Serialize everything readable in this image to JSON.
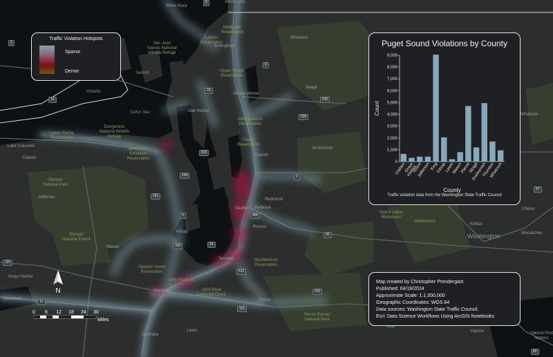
{
  "colors": {
    "land": "#2b2e2d",
    "water": "#0e1114",
    "park": "#3a4330",
    "road": "#5c6367",
    "hotspot_sparse": "#8fb2c4",
    "hotspot_dense": "#b01040",
    "bar": "#8aa8bc"
  },
  "legend": {
    "title": "Traffic Violation Hotspots",
    "sparse_label": "Sparse",
    "dense_label": "Dense"
  },
  "map_labels": {
    "white_rock": "White Rock",
    "abbotsford": "Abbotsford",
    "nooksack": "Nooksack\nReservation",
    "whatcom_top": "Whatcom",
    "whatcom_right": "Whatcom",
    "san_juan": "San Juan\nIslands National\nWildlife Refuge",
    "lummi": "Lummi\nReservation",
    "bellingham": "Bellingham",
    "victoria": "Victoria",
    "upper_skagit": "Upper Skagit\nReservation",
    "mount_vernon": "Mount Vernon",
    "skagit": "Skagit",
    "salish_sea": "Salish Sea",
    "oak_harbor": "Oak Harbor",
    "stillaguamish": "Stillaguamish\nReservation",
    "lower_elwha": "Lower Elwha\nReservation",
    "dungeness": "Dungeness\nNational Wildlife\nRefuge",
    "tulalip": "Tulalip\nReservation",
    "jamestown": "Jamestown\nS'Klallam\nReservation",
    "snohomish": "Snohomish",
    "everett": "Everett",
    "lake_crescent": "Lake Crescent",
    "clallam": "Clallam",
    "olympic_np": "Olympic\nNational Park",
    "jefferson": "Jefferson",
    "redmond": "Redmond",
    "seattle": "Seattle",
    "bellevue": "Bellevue",
    "renton": "Renton",
    "olympic_nf": "Olympic\nNational Forest",
    "alpine_lakes": "Alpine Lakes\nWilderness",
    "kittitas": "Kittitas",
    "washington": "Washington",
    "wenatchee": "Wenatchee",
    "chelan": "Chelan",
    "mason": "Mason",
    "kitsap": "Kitsap",
    "tacoma": "Tacoma",
    "muckleshoot": "Muckleshoot\nReservation",
    "squaxin": "Squaxin Island\nReservation",
    "grays_harbor": "Grays Harbor",
    "billy_frank": "Billy Frank Jr.",
    "olympia": "Olympia",
    "jbl": "Joint Base\nLewis-McChord",
    "pierce": "Pierce",
    "aberdeen": "Aberdeen",
    "mount_rainier": "Mount Rainier\nNational Park",
    "lewis": "Lewis",
    "centralia": "Centralia",
    "yakima": "Yakima",
    "yakima_first": "Yakima First\nNations",
    "samish": "Samish",
    "wilderness": "Wilderness"
  },
  "highway_shields": {
    "s1": "1",
    "s5a": "5",
    "s14": "14",
    "s20": "20",
    "s530": "530",
    "s525": "525",
    "s104": "104",
    "s101a": "101",
    "s2": "2",
    "s405": "405",
    "s90": "90",
    "s3": "3",
    "s16": "16",
    "s512": "512",
    "s302": "302",
    "s101b": "101",
    "s12a": "12",
    "s12b": "12",
    "s97": "97",
    "s82": "82",
    "s410": "410",
    "s161": "161",
    "s9": "9"
  },
  "north_arrow_label": "N",
  "scale": {
    "ticks": [
      "0",
      "6",
      "12",
      "18",
      "24",
      "30"
    ],
    "unit": "Miles"
  },
  "chart_panel_subtitle": "Traffic violation data from the Washington State Traffic Council",
  "chart_data": {
    "type": "bar",
    "title": "Puget Sound Violations by County",
    "xlabel": "County",
    "ylabel": "Count",
    "categories": [
      "Clallam",
      "Grays Harbor",
      "Island",
      "Jefferson",
      "King",
      "Kitsap",
      "Lewis",
      "Mason",
      "Pierce",
      "Skagit",
      "Snohomish",
      "Thurston",
      "Whatcom"
    ],
    "tick_labels": [
      "Clallam",
      "Grays\nHarbor",
      "Island",
      "Jefferson",
      "King",
      "Kitsap",
      "Lewis",
      "Mason",
      "Pierce",
      "Skagit",
      "Snohomish",
      "Thurston",
      "Whatcom"
    ],
    "values": [
      650,
      320,
      420,
      420,
      9050,
      2050,
      200,
      800,
      4700,
      1200,
      4950,
      1700,
      950
    ],
    "ylim": [
      0,
      9000
    ],
    "yticks": [
      "0",
      "1,000",
      "2,000",
      "3,000",
      "4,000",
      "5,000",
      "6,000",
      "7,000",
      "8,000",
      "9,000"
    ],
    "ytick_values": [
      0,
      1000,
      2000,
      3000,
      4000,
      5000,
      6000,
      7000,
      8000,
      9000
    ],
    "grid": false,
    "legend": "none"
  },
  "info": {
    "created_by": "Map created by Christopher Prendergast",
    "published": "Published: 04/18/2024",
    "scale": "Approximate Scale: 1:1,000,000",
    "coords": "Geographic Coordinates: WGS 84",
    "sources": "Data sources: Washington State Traffic Council.",
    "esri": "Esri: Data Science Workflows Using ArcGIS Notebooks"
  }
}
